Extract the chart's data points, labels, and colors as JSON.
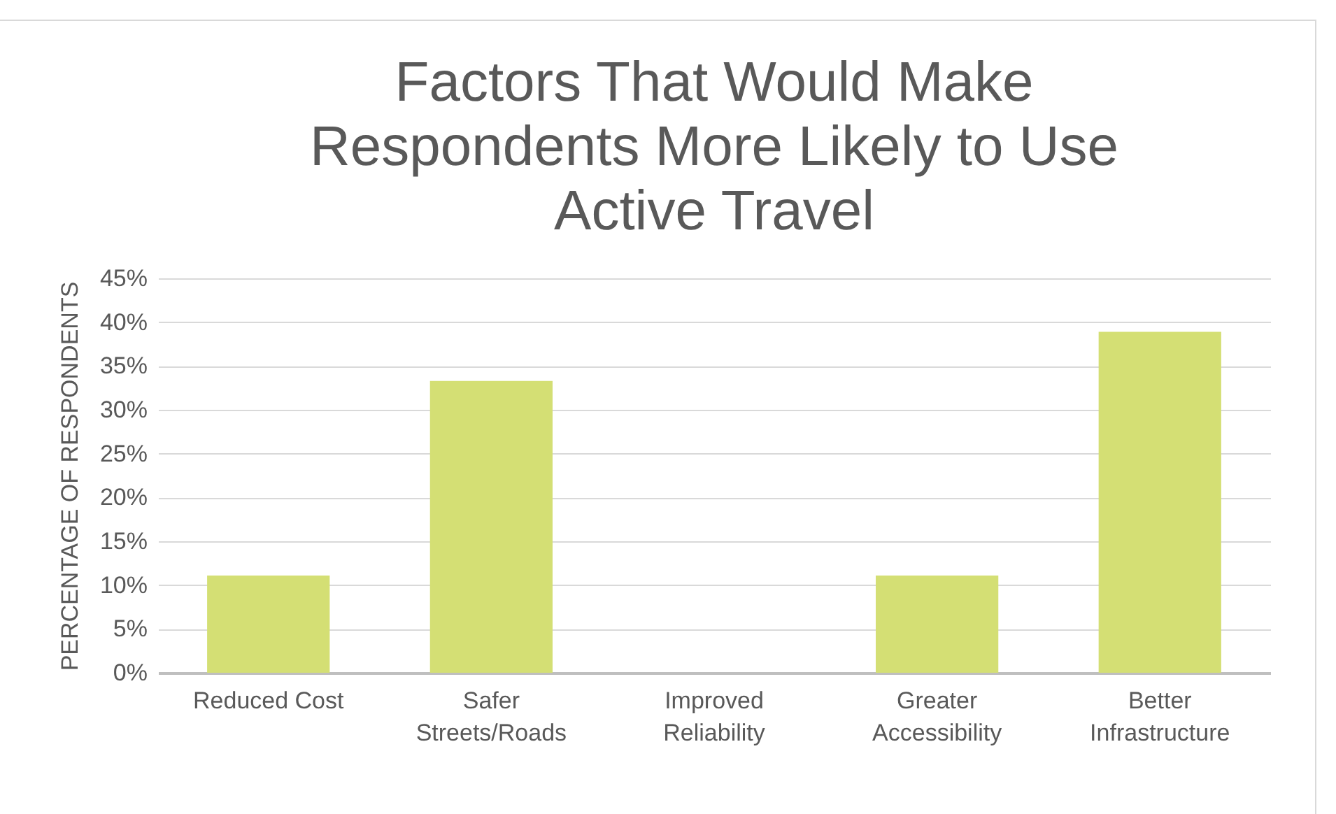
{
  "chart_data": {
    "type": "bar",
    "title": [
      "Factors That Would Make",
      "Respondents More Likely to Use",
      "Active Travel"
    ],
    "ylabel": "PERCENTAGE OF RESPONDENTS",
    "categories": [
      "Reduced Cost",
      "Safer Streets/Roads",
      "Improved Reliability",
      "Greater Accessibility",
      "Better Infrastructure"
    ],
    "values": [
      11.1,
      33.3,
      0,
      11.1,
      38.9
    ],
    "color": "#d4df74",
    "ylim": [
      0,
      45
    ],
    "yticks": [
      {
        "value": 0,
        "label": "0%"
      },
      {
        "value": 5,
        "label": "5%"
      },
      {
        "value": 10,
        "label": "10%"
      },
      {
        "value": 15,
        "label": "15%"
      },
      {
        "value": 20,
        "label": "20%"
      },
      {
        "value": 25,
        "label": "25%"
      },
      {
        "value": 30,
        "label": "30%"
      },
      {
        "value": 35,
        "label": "35%"
      },
      {
        "value": 40,
        "label": "40%"
      },
      {
        "value": 45,
        "label": "45%"
      }
    ],
    "grid": true
  }
}
